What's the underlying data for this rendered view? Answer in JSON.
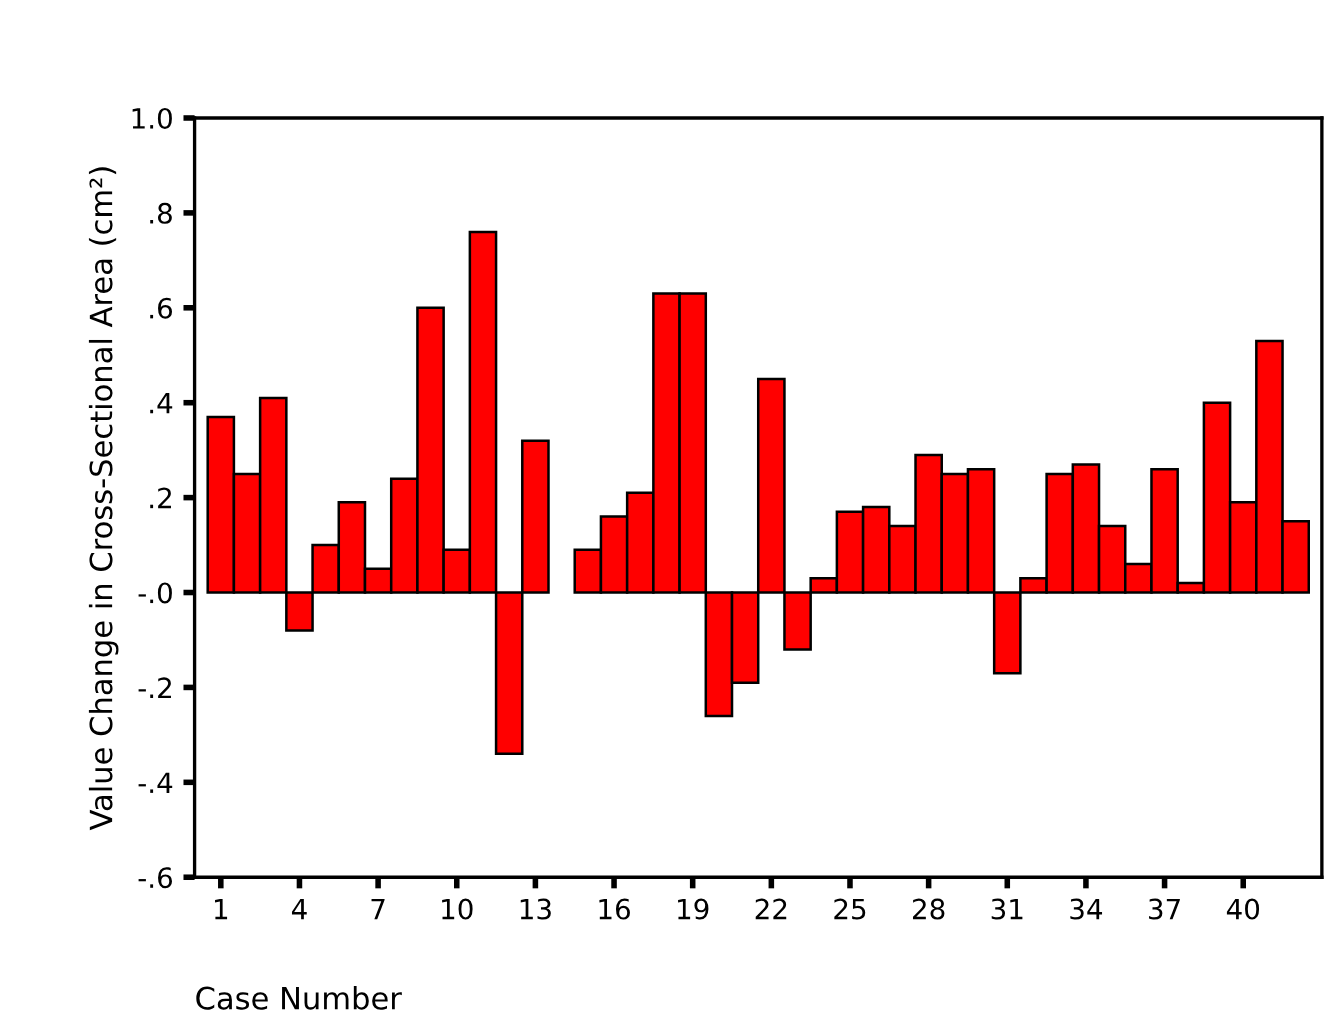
{
  "chart_data": {
    "type": "bar",
    "xlabel": "Case Number",
    "ylabel": "Value Change in Cross-Sectional Area (cm²)",
    "categories": [
      "1",
      null,
      null,
      "4",
      null,
      null,
      "7",
      null,
      null,
      "10",
      null,
      null,
      "13",
      null,
      null,
      "16",
      null,
      null,
      "19",
      null,
      null,
      "22",
      null,
      null,
      "25",
      null,
      null,
      "28",
      null,
      null,
      "31",
      null,
      null,
      "34",
      null,
      null,
      "37",
      null,
      null,
      "40",
      null,
      null
    ],
    "values": [
      0.37,
      0.25,
      0.41,
      -0.08,
      0.1,
      0.19,
      0.05,
      0.24,
      0.6,
      0.09,
      0.76,
      -0.34,
      0.32,
      null,
      0.09,
      0.16,
      0.21,
      0.63,
      0.63,
      -0.26,
      -0.19,
      0.45,
      -0.12,
      0.03,
      0.17,
      0.18,
      0.14,
      0.29,
      0.25,
      0.26,
      -0.17,
      0.03,
      0.25,
      0.27,
      0.14,
      0.06,
      0.26,
      0.02,
      0.4,
      0.19,
      0.53,
      0.15
    ],
    "color": "#ff0000",
    "ylim": [
      -0.6,
      1.0
    ],
    "yticks": [
      {
        "value": -0.6,
        "label": "-.6"
      },
      {
        "value": -0.4,
        "label": "-.4"
      },
      {
        "value": -0.2,
        "label": "-.2"
      },
      {
        "value": 0,
        "label": "-.0"
      },
      {
        "value": 0.2,
        "label": ".2"
      },
      {
        "value": 0.4,
        "label": ".4"
      },
      {
        "value": 0.6,
        "label": ".6"
      },
      {
        "value": 0.8,
        "label": ".8"
      },
      {
        "value": 1.0,
        "label": "1.0"
      }
    ],
    "grid": false,
    "legend": false
  }
}
